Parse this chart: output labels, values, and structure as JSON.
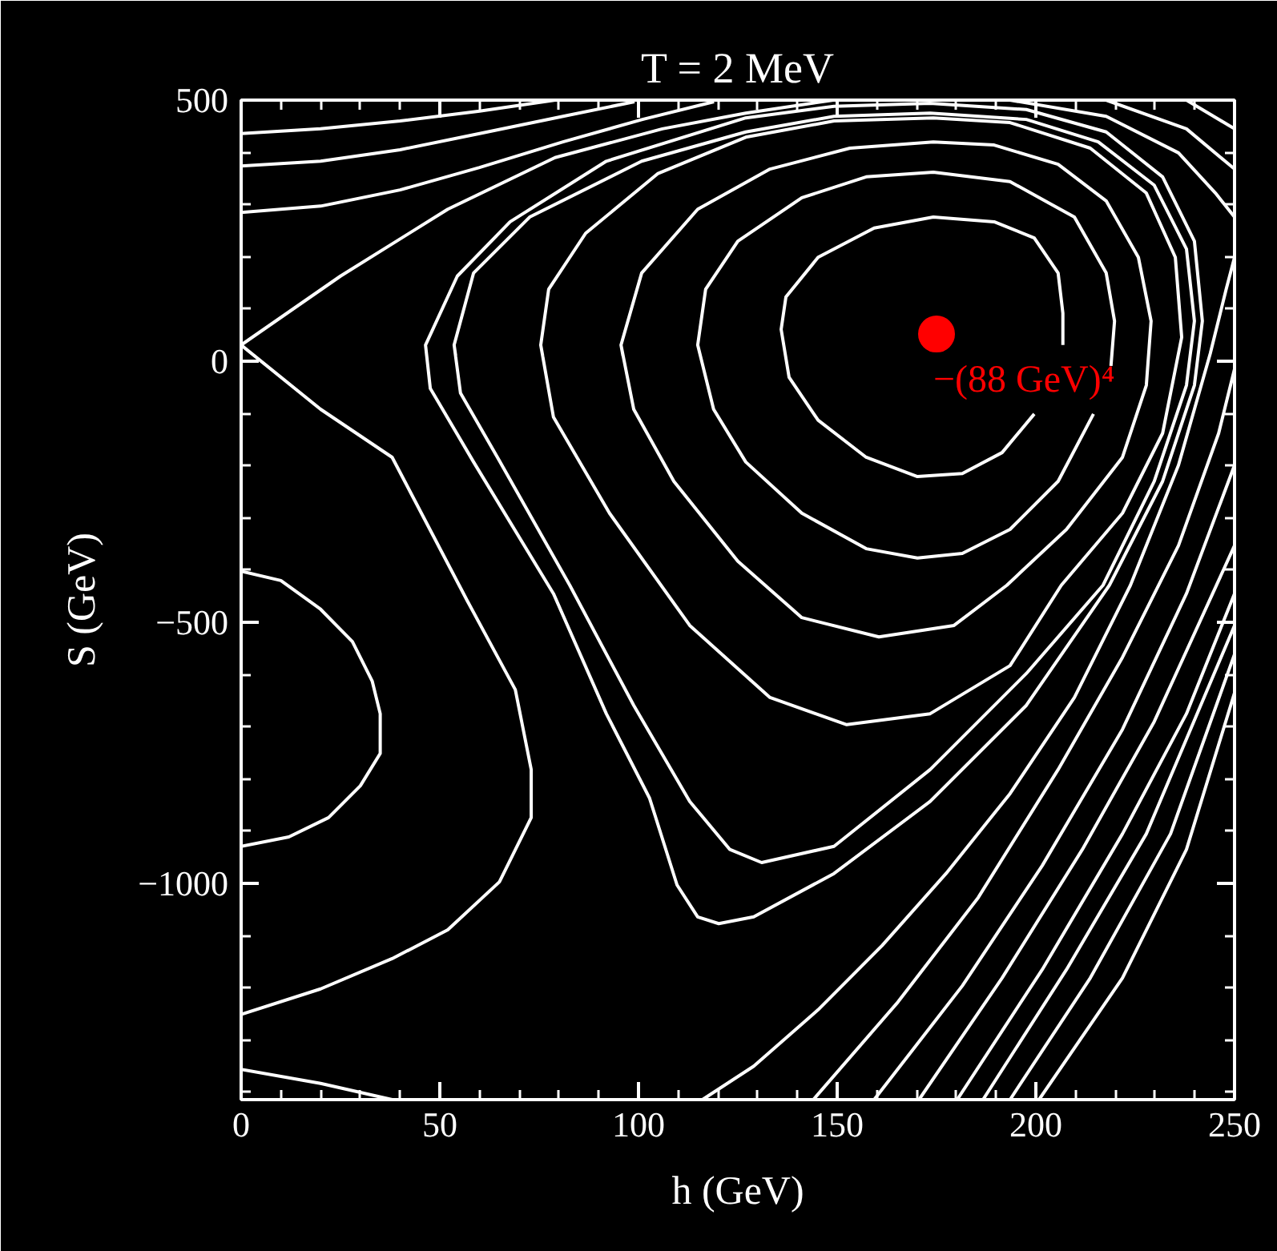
{
  "chart_data": {
    "type": "line",
    "title": "T = 2 MeV",
    "xlabel": "h (GeV)",
    "ylabel": "S (GeV)",
    "xlim": [
      0,
      250
    ],
    "ylim": [
      -1414,
      500
    ],
    "xticks": [
      0,
      50,
      100,
      150,
      200,
      250,
      {
        "value": 10,
        "label": null
      },
      {
        "value": 20,
        "label": null
      },
      {
        "value": 30,
        "label": null
      },
      {
        "value": 40,
        "label": null
      },
      {
        "value": 60,
        "label": null
      },
      {
        "value": 70,
        "label": null
      },
      {
        "value": 80,
        "label": null
      },
      {
        "value": 90,
        "label": null
      },
      {
        "value": 110,
        "label": null
      },
      {
        "value": 120,
        "label": null
      },
      {
        "value": 130,
        "label": null
      },
      {
        "value": 140,
        "label": null
      },
      {
        "value": 160,
        "label": null
      },
      {
        "value": 170,
        "label": null
      },
      {
        "value": 180,
        "label": null
      },
      {
        "value": 190,
        "label": null
      },
      {
        "value": 210,
        "label": null
      },
      {
        "value": 220,
        "label": null
      },
      {
        "value": 230,
        "label": null
      },
      {
        "value": 240,
        "label": null
      }
    ],
    "yticks": [
      500,
      0,
      {
        "value": -500,
        "label": "−500"
      },
      {
        "value": -1000,
        "label": "−1000"
      },
      {
        "value": 400,
        "label": null
      },
      {
        "value": 300,
        "label": null
      },
      {
        "value": 200,
        "label": null
      },
      {
        "value": 100,
        "label": null
      },
      {
        "value": -100,
        "label": null
      },
      {
        "value": -200,
        "label": null
      },
      {
        "value": -300,
        "label": null
      },
      {
        "value": -400,
        "label": null
      },
      {
        "value": -600,
        "label": null
      },
      {
        "value": -700,
        "label": null
      },
      {
        "value": -800,
        "label": null
      },
      {
        "value": -900,
        "label": null
      },
      {
        "value": -1100,
        "label": null
      },
      {
        "value": -1200,
        "label": null
      },
      {
        "value": -1300,
        "label": null
      },
      {
        "value": -1400,
        "label": null
      }
    ],
    "line_style": "solid",
    "annotations": [
      {
        "text": "−(88 GeV)⁴",
        "x": 175,
        "y": 52
      }
    ],
    "series": [
      {
        "color": "#ffffff",
        "x": [
          0,
          20,
          40,
          60,
          79
        ],
        "values": [
          436,
          445,
          460,
          479,
          500
        ]
      },
      {
        "color": "#ffffff",
        "x": [
          0,
          20,
          40,
          60,
          81,
          99
        ],
        "values": [
          374,
          383,
          405,
          436,
          469,
          497
        ]
      },
      {
        "color": "#ffffff",
        "x": [
          0,
          20,
          40,
          60,
          81,
          101,
          119
        ],
        "values": [
          285,
          297,
          328,
          371,
          420,
          463,
          497
        ]
      },
      {
        "color": "#ffffff",
        "x": [
          0,
          25,
          52,
          79,
          106,
          127,
          149
        ],
        "values": [
          31,
          163,
          291,
          390,
          445,
          475,
          500
        ]
      },
      {
        "color": "#ffffff",
        "x": [
          0,
          20,
          38,
          57,
          69,
          73,
          73,
          65,
          52,
          38,
          20,
          0
        ],
        "values": [
          31,
          -92,
          -184,
          -460,
          -629,
          -782,
          -874,
          -997,
          -1089,
          -1144,
          -1202,
          -1251
        ]
      },
      {
        "color": "#ffffff",
        "x": [
          0,
          10,
          20,
          28,
          33,
          35,
          35,
          30,
          22,
          12,
          0
        ],
        "values": [
          -402,
          -420,
          -475,
          -537,
          -613,
          -675,
          -751,
          -813,
          -874,
          -911,
          -929
        ]
      },
      {
        "color": "#ffffff",
        "x": [
          0,
          20,
          38
        ],
        "values": [
          -1356,
          -1383,
          -1414
        ]
      },
      {
        "color": "#ffffff",
        "x": [
          46.4,
          47.6,
          58.5,
          78.6,
          91.9,
          102.8,
          109.7,
          114.9,
          120.2,
          129,
          149.2,
          173.4,
          197.6,
          218.5,
          231.9,
          239.9,
          241.9,
          239.9,
          231.9,
          217.7,
          197.6,
          173.4,
          149.2,
          127,
          91.9,
          67.7,
          54.4,
          46.4,
          46.7
        ],
        "values": [
          31,
          -52,
          -193,
          -445,
          -675,
          -837,
          -1003,
          -1064,
          -1077,
          -1064,
          -981,
          -843,
          -659,
          -429,
          -230,
          -46,
          77,
          230,
          353,
          439,
          482,
          494,
          488,
          466,
          383,
          267,
          163,
          31,
          10
        ]
      },
      {
        "color": "#ffffff",
        "x": [
          53.6,
          55.2,
          64.5,
          82.7,
          98.8,
          112.9,
          123,
          131,
          149.2,
          173.4,
          197.6,
          216.9,
          229.8,
          237.9,
          239.9,
          237.9,
          229.8,
          215.7,
          197.6,
          173.4,
          149.2,
          127,
          100.8,
          72.6,
          58.5,
          53.6,
          54
        ],
        "values": [
          31,
          -61,
          -184,
          -429,
          -659,
          -843,
          -935,
          -960,
          -929,
          -782,
          -598,
          -429,
          -230,
          -46,
          77,
          215,
          337,
          420,
          463,
          475,
          469,
          439,
          383,
          276,
          169,
          31,
          10
        ]
      },
      {
        "color": "#ffffff",
        "x": [
          75.4,
          78.6,
          92.7,
          112.9,
          133.1,
          152.4,
          173.4,
          193.5,
          206.4,
          221.8,
          231.9,
          236.7,
          235.1,
          227.8,
          213.7,
          193.5,
          174.2,
          149.2,
          127,
          104.8,
          86.7,
          77.4,
          75.4,
          75.9
        ],
        "values": [
          31,
          -107,
          -291,
          -506,
          -644,
          -696,
          -675,
          -583,
          -429,
          -291,
          -138,
          46,
          199,
          322,
          408,
          457,
          466,
          460,
          429,
          359,
          245,
          138,
          31,
          10
        ]
      },
      {
        "color": "#ffffff",
        "x": [
          95.6,
          98.8,
          108.9,
          125,
          141.1,
          160.5,
          179.4,
          192.7,
          207.7,
          221.8,
          227.8,
          229,
          225.8,
          217.7,
          205.6,
          189.5,
          174.2,
          153.2,
          133.1,
          114.9,
          100.8,
          95.6,
          96.1
        ],
        "values": [
          31,
          -92,
          -230,
          -383,
          -491,
          -528,
          -506,
          -429,
          -322,
          -184,
          -46,
          77,
          199,
          307,
          377,
          414,
          420,
          408,
          368,
          291,
          169,
          31,
          10
        ]
      },
      {
        "color": "#ffffff",
        "x": [
          214.5,
          205.6,
          193.5,
          181.5,
          170.2,
          157.3,
          141.1,
          127,
          118.9,
          114.9,
          116.9,
          125,
          141.1,
          157.3,
          174.2,
          193.5,
          209.7,
          217.7,
          219.8,
          218.9
        ],
        "values": [
          -101,
          -230,
          -322,
          -368,
          -377,
          -359,
          -291,
          -193,
          -92,
          31,
          138,
          230,
          313,
          353,
          362,
          344,
          276,
          169,
          77,
          -9
        ]
      },
      {
        "color": "#ffffff",
        "x": [
          199.6,
          191.5,
          181.5,
          170.2,
          157.3,
          145.2,
          137.9,
          135.9,
          137.1,
          145.2,
          159.3,
          174.2,
          189.5,
          199.6,
          205.6,
          206.8,
          206.8
        ],
        "values": [
          -101,
          -175,
          -215,
          -221,
          -184,
          -113,
          -31,
          61,
          123,
          199,
          255,
          276,
          267,
          236,
          169,
          92,
          31
        ]
      },
      {
        "color": "#ffffff",
        "x": [
          116.1,
          129,
          145.2,
          161.3,
          177.4,
          193.5,
          209.7,
          223.8,
          235.9,
          243.9,
          247.9,
          250
        ],
        "values": [
          -1414,
          -1350,
          -1242,
          -1119,
          -981,
          -828,
          -644,
          -429,
          -199,
          15,
          138,
          199
        ]
      },
      {
        "color": "#ffffff",
        "x": [
          144,
          165.3,
          185.5,
          205.6,
          221.8,
          235.9,
          246,
          250
        ],
        "values": [
          -1414,
          -1227,
          -1027,
          -782,
          -567,
          -353,
          -138,
          -15
        ]
      },
      {
        "color": "#ffffff",
        "x": [
          159.3,
          181.5,
          201.6,
          221.8,
          237.9,
          250
        ],
        "values": [
          -1414,
          -1196,
          -966,
          -705,
          -445,
          -199
        ]
      },
      {
        "color": "#ffffff",
        "x": [
          170.6,
          191.5,
          211.7,
          229.8,
          250
        ],
        "values": [
          -1414,
          -1181,
          -935,
          -690,
          -353
        ]
      },
      {
        "color": "#ffffff",
        "x": [
          180.2,
          201.6,
          221.8,
          237.9,
          250
        ],
        "values": [
          -1414,
          -1165,
          -905,
          -675,
          -445
        ]
      },
      {
        "color": "#ffffff",
        "x": [
          186.7,
          207.7,
          227.8,
          250
        ],
        "values": [
          -1414,
          -1165,
          -905,
          -506
        ]
      },
      {
        "color": "#ffffff",
        "x": [
          193.5,
          213.7,
          233.9,
          250
        ],
        "values": [
          -1414,
          -1181,
          -905,
          -561
        ]
      },
      {
        "color": "#ffffff",
        "x": [
          200.8,
          221.8,
          237.9,
          250
        ],
        "values": [
          -1414,
          -1181,
          -935,
          -635
        ]
      },
      {
        "color": "#ffffff",
        "x": [
          193.5,
          217.7,
          235.9,
          245.2,
          250
        ],
        "values": [
          500,
          469,
          399,
          322,
          276
        ]
      },
      {
        "color": "#ffffff",
        "x": [
          217.7,
          237.9,
          250
        ],
        "values": [
          500,
          445,
          368
        ]
      },
      {
        "color": "#ffffff",
        "x": [
          237.9,
          250
        ],
        "values": [
          500,
          445
        ]
      },
      {
        "type": "scatter",
        "marker": "circle",
        "color": "#ff0000",
        "x": [
          175
        ],
        "values": [
          52
        ]
      }
    ]
  }
}
